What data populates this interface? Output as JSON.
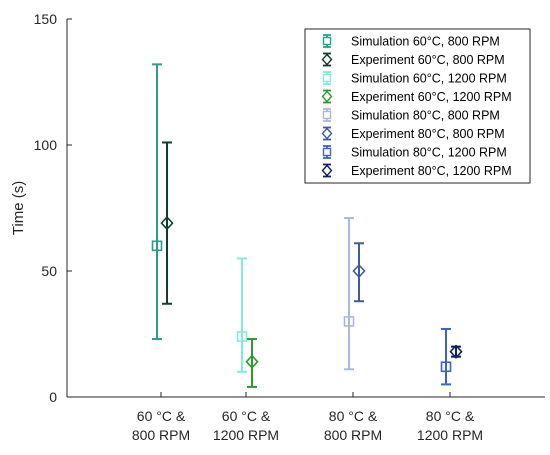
{
  "chart_data": {
    "type": "scatter",
    "title": "",
    "xlabel": "",
    "ylabel": "Time (s)",
    "ylim": [
      0,
      150
    ],
    "yticks": [
      0,
      50,
      100,
      150
    ],
    "categories": [
      [
        "60 °C &",
        "800 RPM"
      ],
      [
        "60 °C &",
        "1200 RPM"
      ],
      [
        "80 °C &",
        "800 RPM"
      ],
      [
        "80 °C &",
        "1200 RPM"
      ]
    ],
    "legend_position": "top-right",
    "grid": false,
    "series": [
      {
        "name": "Simulation 60°C, 800 RPM",
        "category": 0,
        "side": "sim",
        "marker": "square",
        "color": "#2a9d8c",
        "mean": 60,
        "low": 23,
        "high": 132
      },
      {
        "name": "Experiment 60°C, 800 RPM",
        "category": 0,
        "side": "exp",
        "marker": "diamond",
        "color": "#0e3d2e",
        "mean": 69,
        "low": 37,
        "high": 101
      },
      {
        "name": "Simulation 60°C, 1200 RPM",
        "category": 1,
        "side": "sim",
        "marker": "square",
        "color": "#7fecdd",
        "mean": 24,
        "low": 10,
        "high": 55
      },
      {
        "name": "Experiment 60°C, 1200 RPM",
        "category": 1,
        "side": "exp",
        "marker": "diamond",
        "color": "#2e9a2e",
        "mean": 14,
        "low": 4,
        "high": 23
      },
      {
        "name": "Simulation 80°C, 800 RPM",
        "category": 2,
        "side": "sim",
        "marker": "square",
        "color": "#a9b8d8",
        "mean": 30,
        "low": 11,
        "high": 71
      },
      {
        "name": "Experiment 80°C, 800 RPM",
        "category": 2,
        "side": "exp",
        "marker": "diamond",
        "color": "#3f5aa0",
        "mean": 50,
        "low": 38,
        "high": 61
      },
      {
        "name": "Simulation 80°C, 1200 RPM",
        "category": 3,
        "side": "sim",
        "marker": "square",
        "color": "#3d63c9",
        "mean": 12,
        "low": 5,
        "high": 27
      },
      {
        "name": "Experiment 80°C, 1200 RPM",
        "category": 3,
        "side": "exp",
        "marker": "diamond",
        "color": "#0f1f66",
        "mean": 18,
        "low": 16,
        "high": 20
      }
    ]
  }
}
